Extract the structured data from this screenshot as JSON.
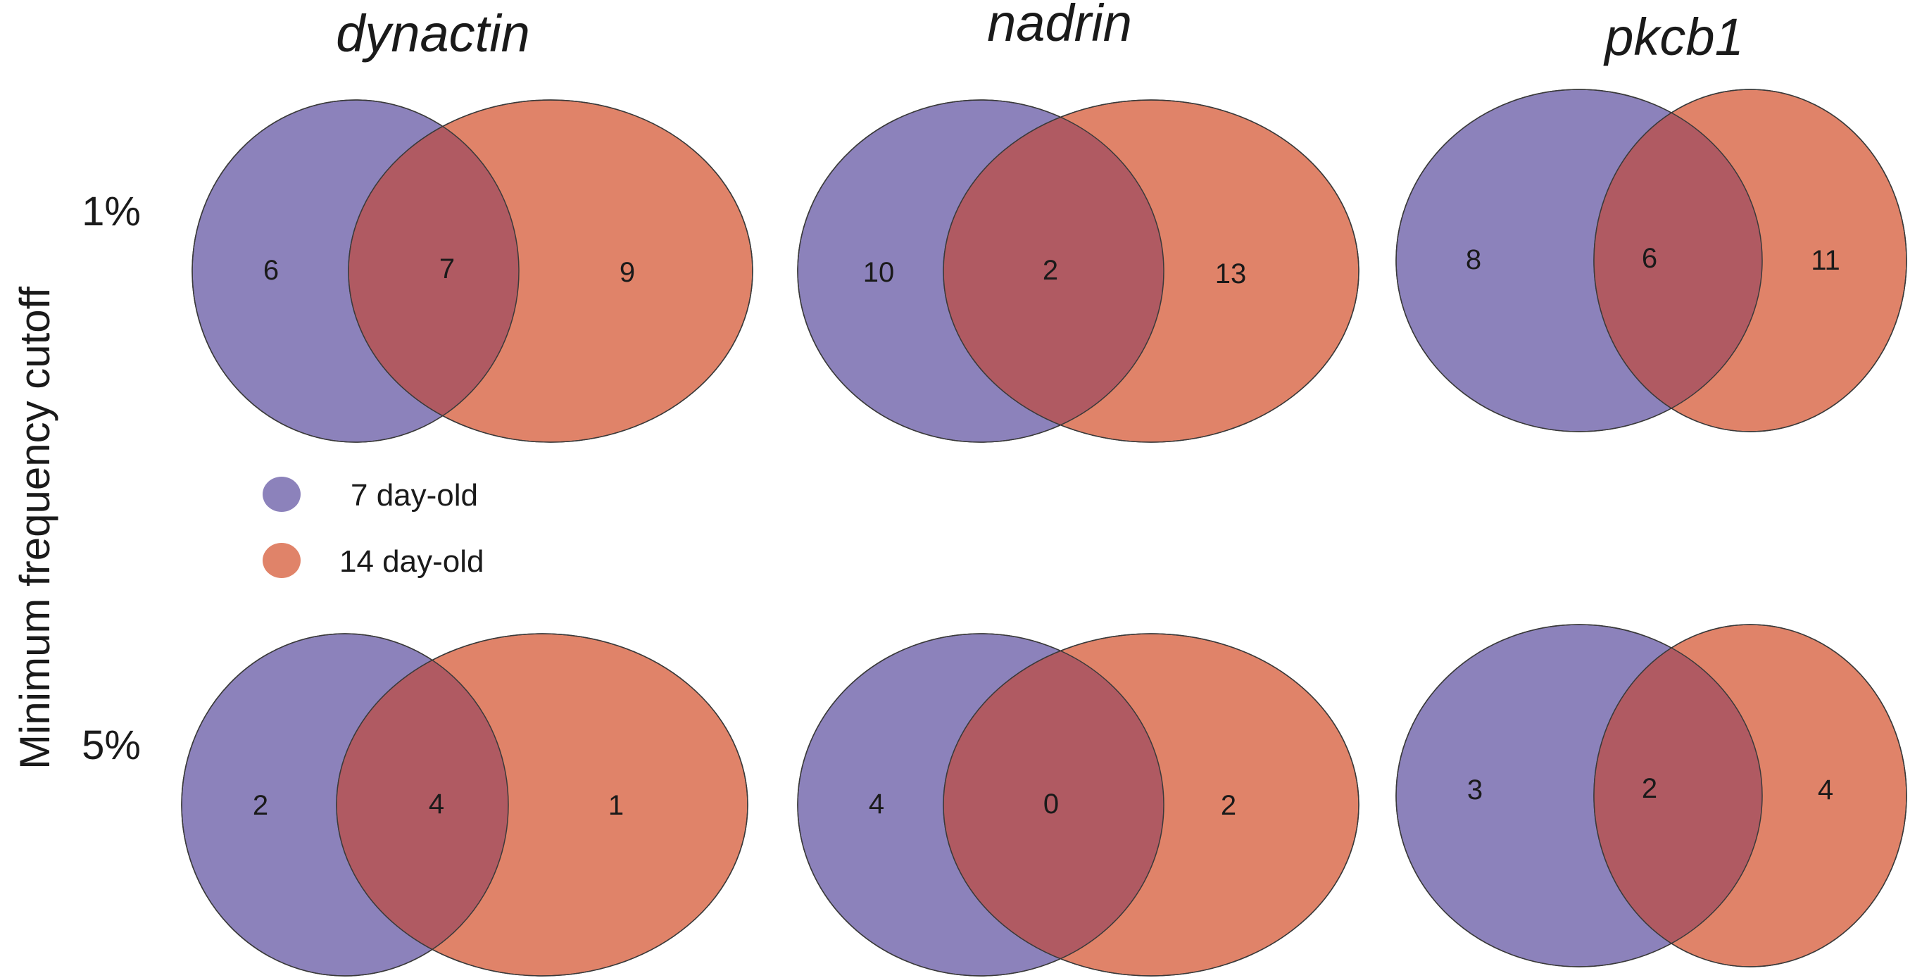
{
  "axis_title": "Minimum frequency cutoff",
  "columns": [
    "dynactin",
    "nadrin",
    "pkcb1"
  ],
  "rows": [
    "1%",
    "5%"
  ],
  "legend": [
    {
      "label": "7 day-old",
      "color": "#7e71b5"
    },
    {
      "label": "14 day-old",
      "color": "#e07052"
    }
  ],
  "colors": {
    "set_a": "#7e71b5",
    "set_b": "#e07052",
    "overlap": "#b05a62"
  },
  "diagrams": [
    {
      "column": "dynactin",
      "row": "1%",
      "only_a": "6",
      "both": "7",
      "only_b": "9"
    },
    {
      "column": "nadrin",
      "row": "1%",
      "only_a": "10",
      "both": "2",
      "only_b": "13"
    },
    {
      "column": "pkcb1",
      "row": "1%",
      "only_a": "8",
      "both": "6",
      "only_b": "11"
    },
    {
      "column": "dynactin",
      "row": "5%",
      "only_a": "2",
      "both": "4",
      "only_b": "1"
    },
    {
      "column": "nadrin",
      "row": "5%",
      "only_a": "4",
      "both": "0",
      "only_b": "2"
    },
    {
      "column": "pkcb1",
      "row": "5%",
      "only_a": "3",
      "both": "2",
      "only_b": "4"
    }
  ]
}
